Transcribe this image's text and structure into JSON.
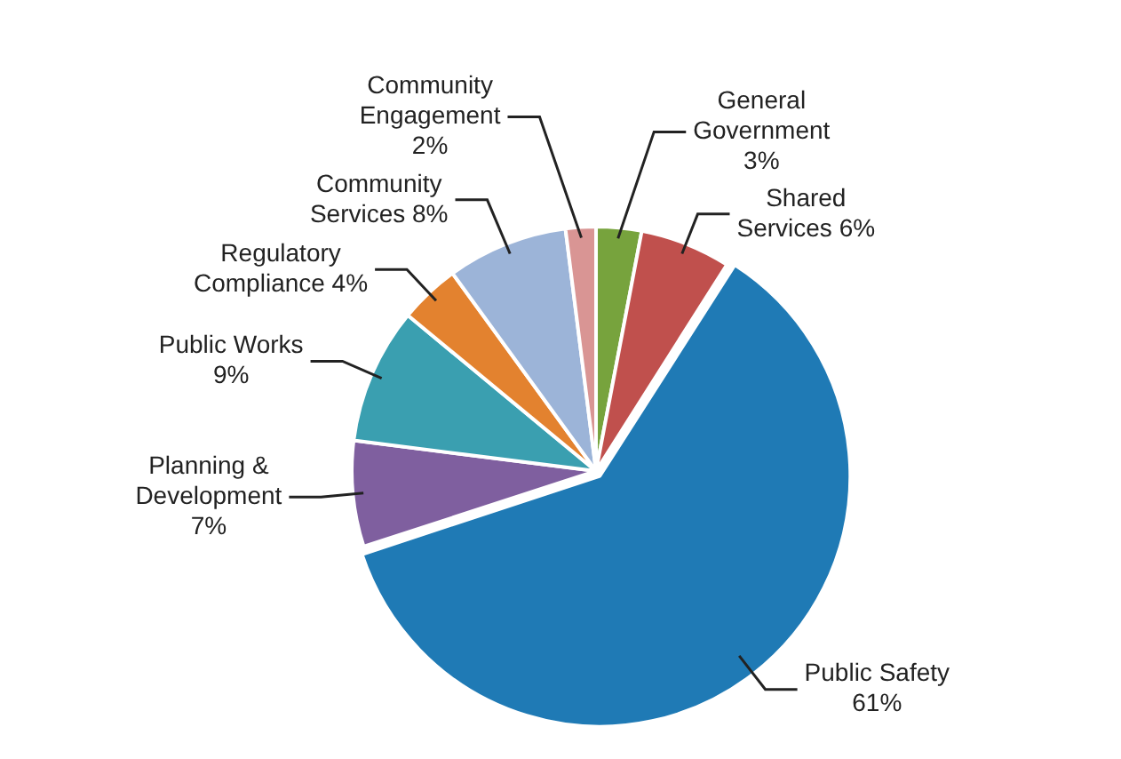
{
  "chart_data": {
    "type": "pie",
    "categories": [
      "General Government",
      "Shared Services",
      "Public Safety",
      "Planning & Development",
      "Public Works",
      "Regulatory Compliance",
      "Community Services",
      "Community Engagement"
    ],
    "values": [
      3,
      6,
      61,
      7,
      9,
      4,
      8,
      2
    ],
    "value_labels": [
      "3%",
      "6%",
      "61%",
      "7%",
      "9%",
      "4%",
      "8%",
      "2%"
    ],
    "colors": [
      "#77a33d",
      "#c0504d",
      "#1f7ab5",
      "#7f5f9f",
      "#3a9fb0",
      "#e3822f",
      "#9cb4d8",
      "#d99594"
    ],
    "legend": false
  }
}
